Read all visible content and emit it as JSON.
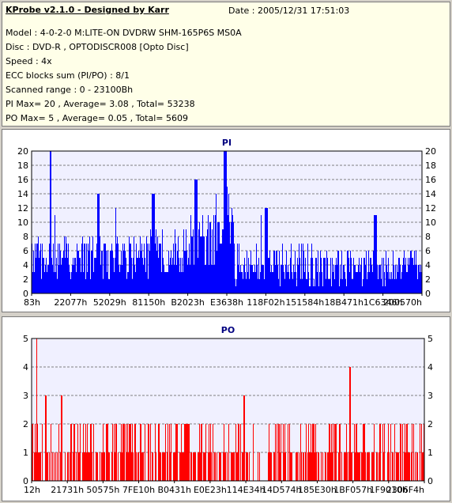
{
  "info": {
    "title": "KProbe v2.1.0 - Designed by Karr",
    "date": "Date : 2005/12/31 17:51:03",
    "lines": [
      "Model : 4-0-2-0 M:LITE-ON DVDRW SHM-165P6S MS0A",
      "Disc : DVD-R , OPTODISCR008 [Opto Disc]",
      "Speed : 4x",
      "ECC blocks sum (PI/PO) : 8/1",
      "Scanned range : 0 - 23100Bh",
      "PI Max= 20 , Average= 3.08 , Total= 53238",
      "PO Max= 5 , Average= 0.05 , Total= 5609"
    ]
  },
  "chart_data": [
    {
      "type": "bar",
      "title": "PI",
      "ylim": [
        0,
        20
      ],
      "yticks": [
        0,
        2,
        4,
        6,
        8,
        10,
        12,
        14,
        16,
        18,
        20
      ],
      "xticks": [
        "83h",
        "22077h",
        "52029h",
        "81150h",
        "B2023h",
        "E3638h",
        "118F02h",
        "151584h",
        "18B471h",
        "1C6346h",
        "200570h"
      ],
      "grid": true,
      "color": "#0000ff",
      "profile": [
        {
          "to": 0.05,
          "base": 4,
          "spread": 6,
          "peak": 20,
          "peakAt": 0.05
        },
        {
          "to": 0.3,
          "base": 4,
          "spread": 6,
          "peak": 14,
          "peakAt": 0.17
        },
        {
          "to": 0.4,
          "base": 5,
          "spread": 7,
          "peak": 14,
          "peakAt": 0.31
        },
        {
          "to": 0.47,
          "base": 6,
          "spread": 8,
          "peak": 16,
          "peakAt": 0.42
        },
        {
          "to": 0.52,
          "base": 9,
          "spread": 9,
          "peak": 20,
          "peakAt": 0.495
        },
        {
          "to": 0.78,
          "base": 3,
          "spread": 6,
          "peak": 12,
          "peakAt": 0.6
        },
        {
          "to": 1.0,
          "base": 3,
          "spread": 5,
          "peak": 11,
          "peakAt": 0.88
        }
      ]
    },
    {
      "type": "bar",
      "title": "PO",
      "ylim": [
        0,
        5
      ],
      "yticks": [
        0,
        1,
        2,
        3,
        4,
        5
      ],
      "xticks": [
        "12h",
        "21731h",
        "50575h",
        "7FE10h",
        "B0431h",
        "E0E23h",
        "114E34h",
        "14D574h",
        "185E30h",
        "1BF057h",
        "1F9010h",
        "2306F4h"
      ],
      "grid": true,
      "color": "#ff0000",
      "peaks": [
        {
          "at": 0.012,
          "value": 5
        },
        {
          "at": 0.035,
          "value": 3
        },
        {
          "at": 0.075,
          "value": 3
        },
        {
          "at": 0.54,
          "value": 3
        },
        {
          "at": 0.81,
          "value": 4
        }
      ]
    }
  ]
}
